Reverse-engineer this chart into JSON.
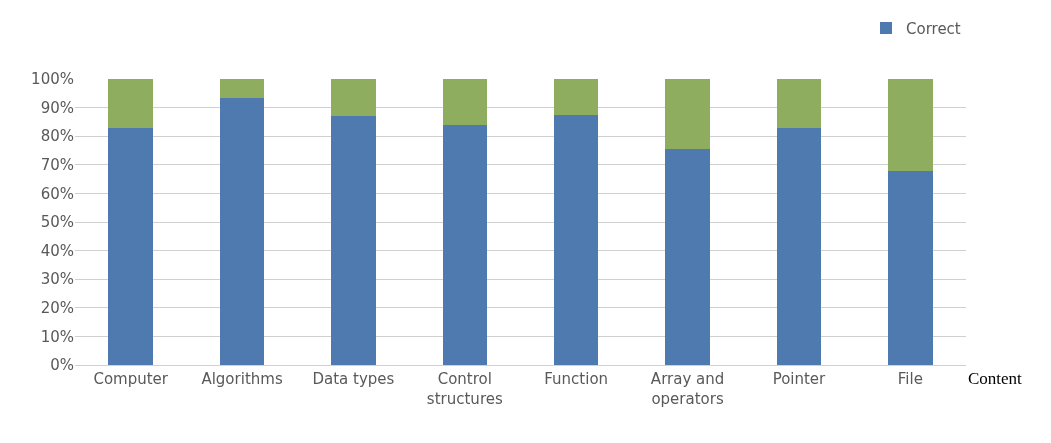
{
  "chart_data": {
    "type": "bar",
    "stacked": true,
    "xlabel": "Content",
    "categories": [
      "Computer",
      "Algorithms",
      "Data types",
      "Control structures",
      "Function",
      "Array and operators",
      "Pointer",
      "File"
    ],
    "series": [
      {
        "name": "Correct",
        "color": "#4e7ab0",
        "values": [
          83,
          93.5,
          87,
          84,
          87.5,
          75.5,
          83,
          68
        ]
      },
      {
        "color": "#8fad5f",
        "values": [
          17,
          6.5,
          13,
          16,
          12.5,
          24.5,
          17,
          32
        ]
      }
    ],
    "ylim": [
      0,
      100
    ],
    "yticks": [
      {
        "value": 0,
        "label": "0%"
      },
      {
        "value": 10,
        "label": "10%"
      },
      {
        "value": 20,
        "label": "20%"
      },
      {
        "value": 30,
        "label": "30%"
      },
      {
        "value": 40,
        "label": "40%"
      },
      {
        "value": 50,
        "label": "50%"
      },
      {
        "value": 60,
        "label": "60%"
      },
      {
        "value": 70,
        "label": "70%"
      },
      {
        "value": 80,
        "label": "80%"
      },
      {
        "value": 90,
        "label": "90%"
      },
      {
        "value": 100,
        "label": "100%"
      }
    ],
    "grid": "y",
    "legend": "top right"
  }
}
